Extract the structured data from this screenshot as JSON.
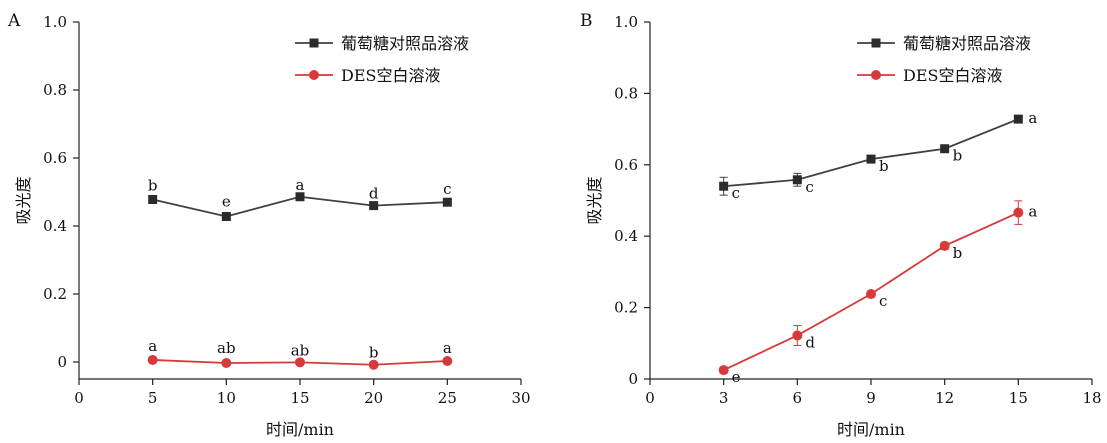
{
  "chart_data": [
    {
      "type": "line",
      "panel": "A",
      "xlabel": "时间/min",
      "ylabel": "吸光度",
      "xlim": [
        0,
        30
      ],
      "ylim": [
        -0.05,
        1.0
      ],
      "xticks": [
        "0",
        "5",
        "10",
        "15",
        "20",
        "25",
        "30"
      ],
      "yticks": [
        "0",
        "0.2",
        "0.4",
        "0.6",
        "0.8",
        "1.0"
      ],
      "legend_position": "top-right",
      "grid": false,
      "series": [
        {
          "name": "葡萄糖对照品溶液",
          "color": "#404040",
          "marker": "square",
          "x": [
            5,
            10,
            15,
            20,
            25
          ],
          "y": [
            0.478,
            0.428,
            0.486,
            0.46,
            0.47
          ],
          "err": [
            0.004,
            0.004,
            0.004,
            0.004,
            0.004
          ],
          "labels": [
            "b",
            "e",
            "a",
            "d",
            "c"
          ],
          "label_pos": "above"
        },
        {
          "name": "DES空白溶液",
          "color": "#d63a3a",
          "marker": "circle",
          "x": [
            5,
            10,
            15,
            20,
            25
          ],
          "y": [
            0.006,
            -0.003,
            -0.001,
            -0.008,
            0.003
          ],
          "err": [
            0.003,
            0.003,
            0.003,
            0.003,
            0.003
          ],
          "labels": [
            "a",
            "ab",
            "ab",
            "b",
            "a"
          ],
          "label_pos": "above"
        }
      ]
    },
    {
      "type": "line",
      "panel": "B",
      "xlabel": "时间/min",
      "ylabel": "吸光度",
      "xlim": [
        0,
        18
      ],
      "ylim": [
        0,
        1.0
      ],
      "xticks": [
        "0",
        "3",
        "6",
        "9",
        "12",
        "15",
        "18"
      ],
      "yticks": [
        "0",
        "0.2",
        "0.4",
        "0.6",
        "0.8",
        "1.0"
      ],
      "legend_position": "top-right",
      "grid": false,
      "series": [
        {
          "name": "葡萄糖对照品溶液",
          "color": "#404040",
          "marker": "square",
          "x": [
            3,
            6,
            9,
            12,
            15
          ],
          "y": [
            0.54,
            0.558,
            0.616,
            0.645,
            0.728
          ],
          "err": [
            0.025,
            0.018,
            0.008,
            0.006,
            0.005
          ],
          "labels": [
            "c",
            "c",
            "b",
            "b",
            "a"
          ],
          "label_pos": "below-right"
        },
        {
          "name": "DES空白溶液",
          "color": "#d63a3a",
          "marker": "circle",
          "x": [
            3,
            6,
            9,
            12,
            15
          ],
          "y": [
            0.025,
            0.122,
            0.238,
            0.373,
            0.466
          ],
          "err": [
            0.008,
            0.028,
            0.008,
            0.01,
            0.033
          ],
          "labels": [
            "e",
            "d",
            "c",
            "b",
            "a"
          ],
          "label_pos": "below-right"
        }
      ]
    }
  ]
}
